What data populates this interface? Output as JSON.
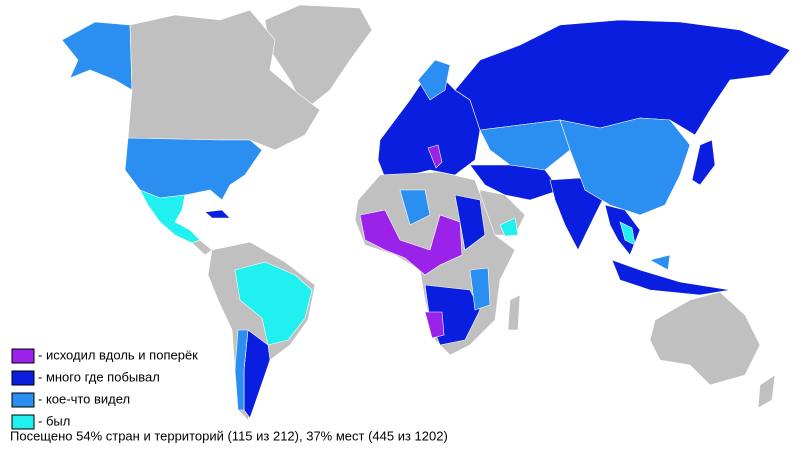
{
  "legend": [
    {
      "label": "- исходил вдоль и поперёк",
      "color": "#9b22e8"
    },
    {
      "label": "- много где побывал",
      "color": "#0a1ee0"
    },
    {
      "label": "- кое-что видел",
      "color": "#2a8ff0"
    },
    {
      "label": "- был",
      "color": "#20f0f0"
    }
  ],
  "summary": "Посещено 54% стран и территорий (115 из 212), 37% мест (445 из 1202)"
}
